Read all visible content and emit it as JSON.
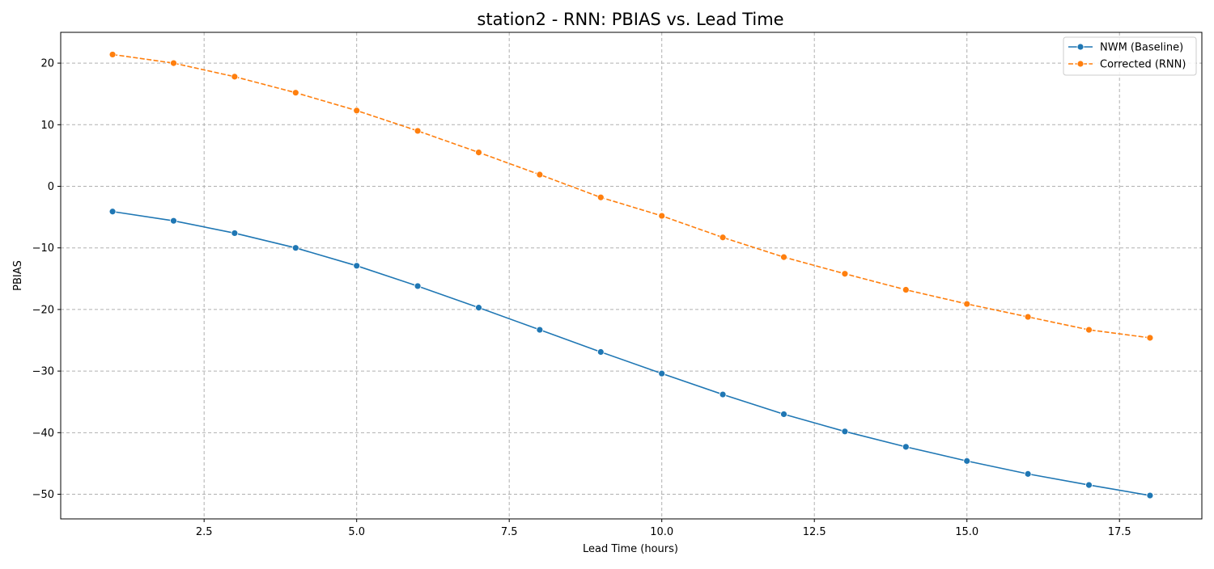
{
  "chart_data": {
    "type": "line",
    "title": "station2 - RNN: PBIAS vs. Lead Time",
    "xlabel": "Lead Time (hours)",
    "ylabel": "PBIAS",
    "xlim": [
      0.15,
      18.85
    ],
    "ylim": [
      -54,
      25
    ],
    "xticks": [
      2.5,
      5.0,
      7.5,
      10.0,
      12.5,
      15.0,
      17.5
    ],
    "xtick_labels": [
      "2.5",
      "5.0",
      "7.5",
      "10.0",
      "12.5",
      "15.0",
      "17.5"
    ],
    "yticks": [
      20,
      10,
      0,
      -10,
      -20,
      -30,
      -40,
      -50
    ],
    "ytick_labels": [
      "20",
      "10",
      "0",
      "−10",
      "−20",
      "−30",
      "−40",
      "−50"
    ],
    "grid": true,
    "legend_position": "top-right",
    "x": [
      1,
      2,
      3,
      4,
      5,
      6,
      7,
      8,
      9,
      10,
      11,
      12,
      13,
      14,
      15,
      16,
      17,
      18
    ],
    "series": [
      {
        "name": "NWM (Baseline)",
        "color": "#1f77b4",
        "dash": "solid",
        "values": [
          -4.1,
          -5.6,
          -7.6,
          -10.0,
          -12.9,
          -16.2,
          -19.7,
          -23.3,
          -26.9,
          -30.4,
          -33.8,
          -37.0,
          -39.8,
          -42.3,
          -44.6,
          -46.7,
          -48.5,
          -50.2
        ]
      },
      {
        "name": "Corrected (RNN)",
        "color": "#ff7f0e",
        "dash": "dashed",
        "values": [
          21.4,
          20.0,
          17.8,
          15.2,
          12.3,
          9.0,
          5.5,
          1.9,
          -1.8,
          -4.8,
          -8.3,
          -11.5,
          -14.2,
          -16.8,
          -19.1,
          -21.2,
          -23.3,
          -24.6
        ]
      }
    ]
  }
}
